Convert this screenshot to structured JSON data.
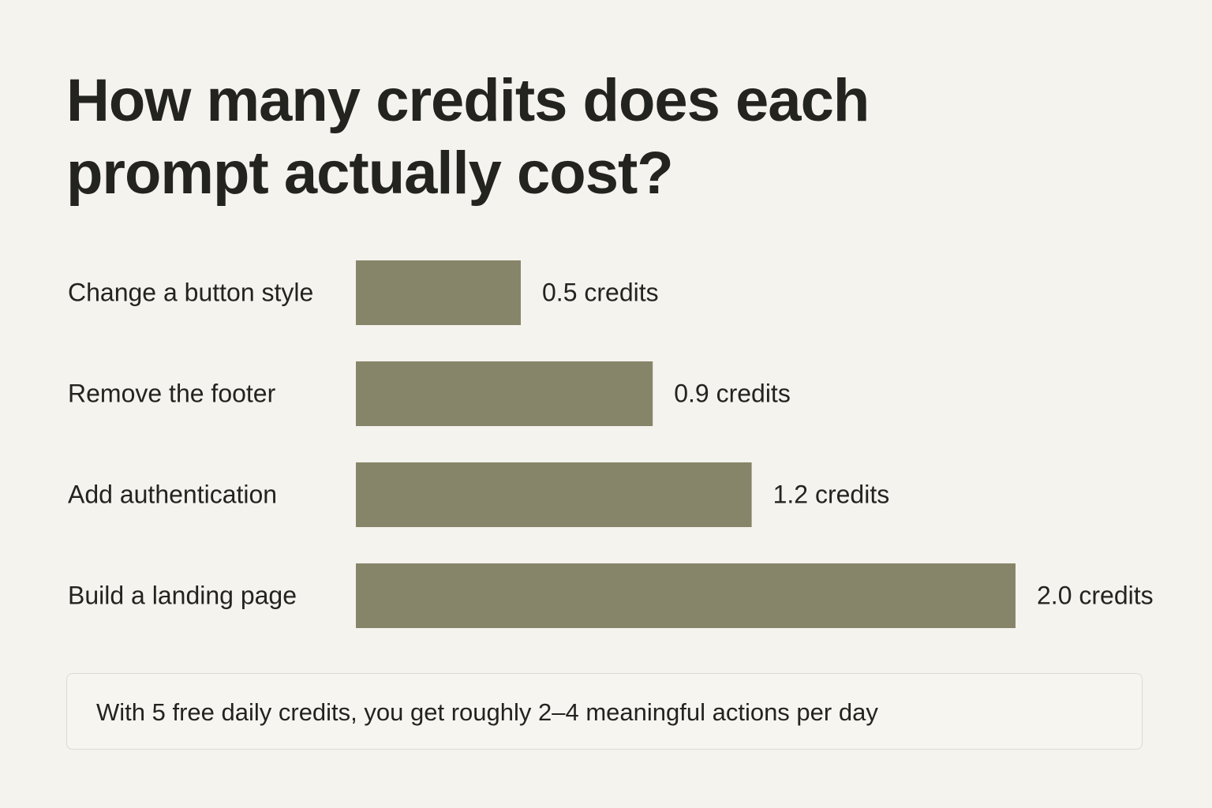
{
  "chart_data": {
    "type": "bar",
    "orientation": "horizontal",
    "title": "How many credits does each prompt actually cost?",
    "categories": [
      "Change a button style",
      "Remove the footer",
      "Add authentication",
      "Build a landing page"
    ],
    "values": [
      0.5,
      0.9,
      1.2,
      2.0
    ],
    "value_labels": [
      "0.5 credits",
      "0.9 credits",
      "1.2 credits",
      "2.0 credits"
    ],
    "color": "#878569",
    "note": "With 5 free daily credits, you get roughly 2–4 meaningful actions per day"
  }
}
